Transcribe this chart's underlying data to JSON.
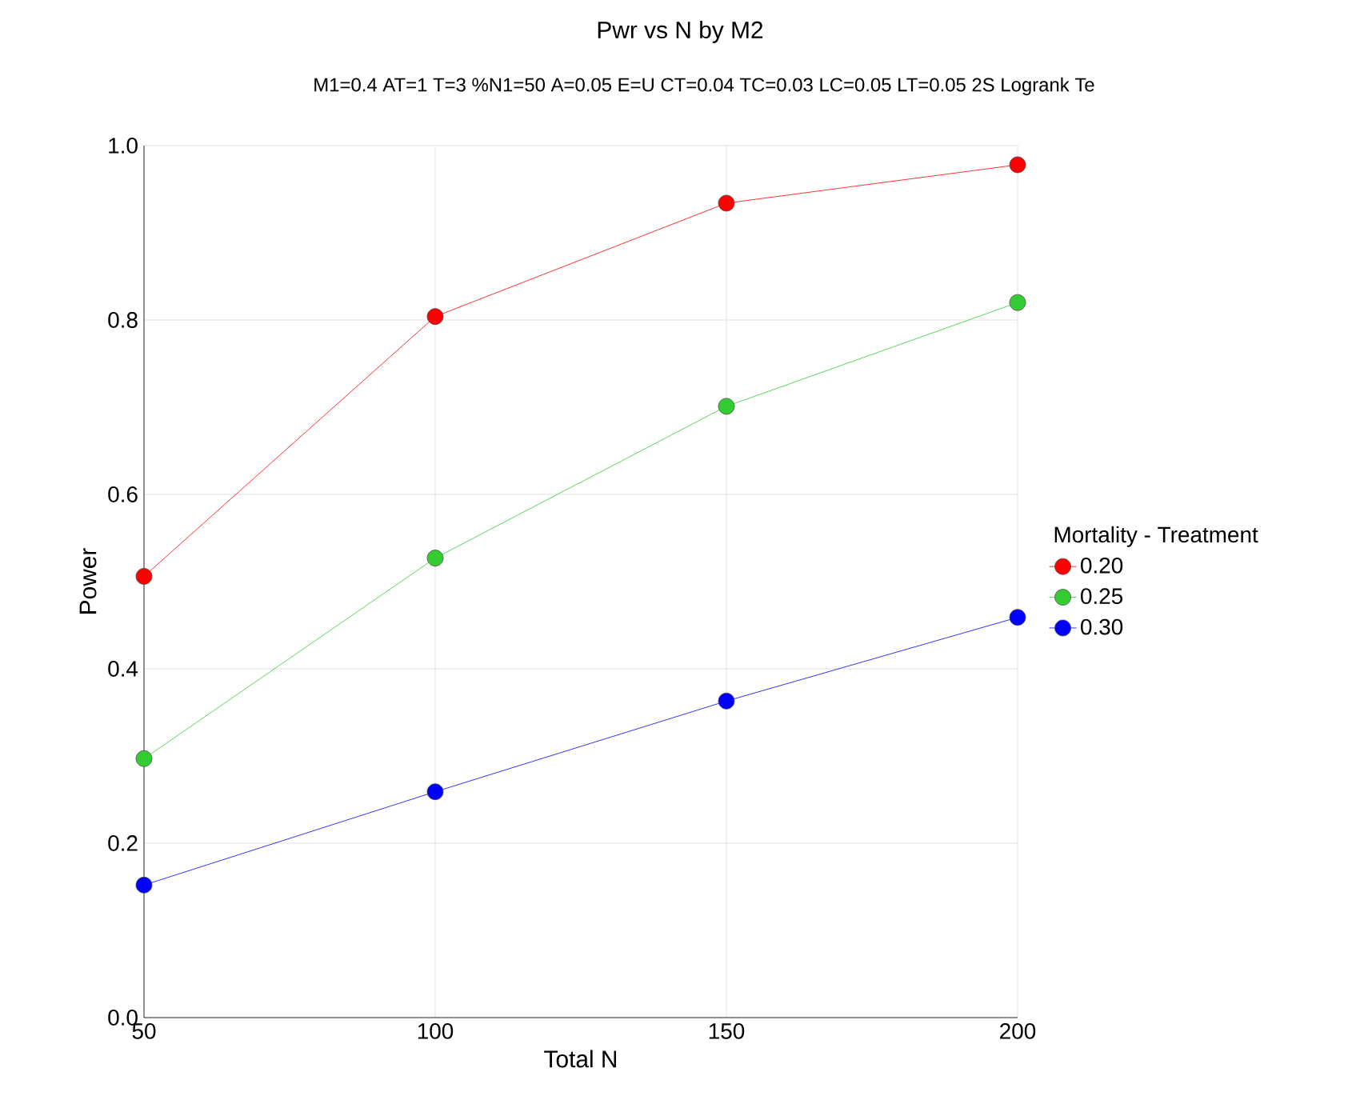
{
  "chart_data": {
    "type": "line",
    "title": "Pwr vs N by M2",
    "subtitle": "M1=0.4 AT=1 T=3 %N1=50 A=0.05 E=U CT=0.04 TC=0.03 LC=0.05 LT=0.05 2S Logrank Te",
    "xlabel": "Total N",
    "ylabel": "Power",
    "legend_title": "Mortality - Treatment",
    "x": [
      50,
      100,
      150,
      200
    ],
    "series": [
      {
        "name": "0.20",
        "color": "#ff0000",
        "values": [
          0.506,
          0.804,
          0.934,
          0.978
        ]
      },
      {
        "name": "0.25",
        "color": "#33cc33",
        "values": [
          0.297,
          0.527,
          0.701,
          0.82
        ]
      },
      {
        "name": "0.30",
        "color": "#0000ff",
        "values": [
          0.152,
          0.259,
          0.363,
          0.459
        ]
      }
    ],
    "xlim": [
      50,
      200
    ],
    "xticks": [
      50,
      100,
      150,
      200
    ],
    "ylim": [
      0,
      1
    ],
    "yticks": [
      {
        "value": 0,
        "label": "0.0"
      },
      {
        "value": 0.2,
        "label": "0.2"
      },
      {
        "value": 0.4,
        "label": "0.4"
      },
      {
        "value": 0.6,
        "label": "0.6"
      },
      {
        "value": 0.8,
        "label": "0.8"
      },
      {
        "value": 1,
        "label": "1.0"
      }
    ],
    "grid": true,
    "legend": "right",
    "marker": "circle",
    "line_style": "solid"
  }
}
